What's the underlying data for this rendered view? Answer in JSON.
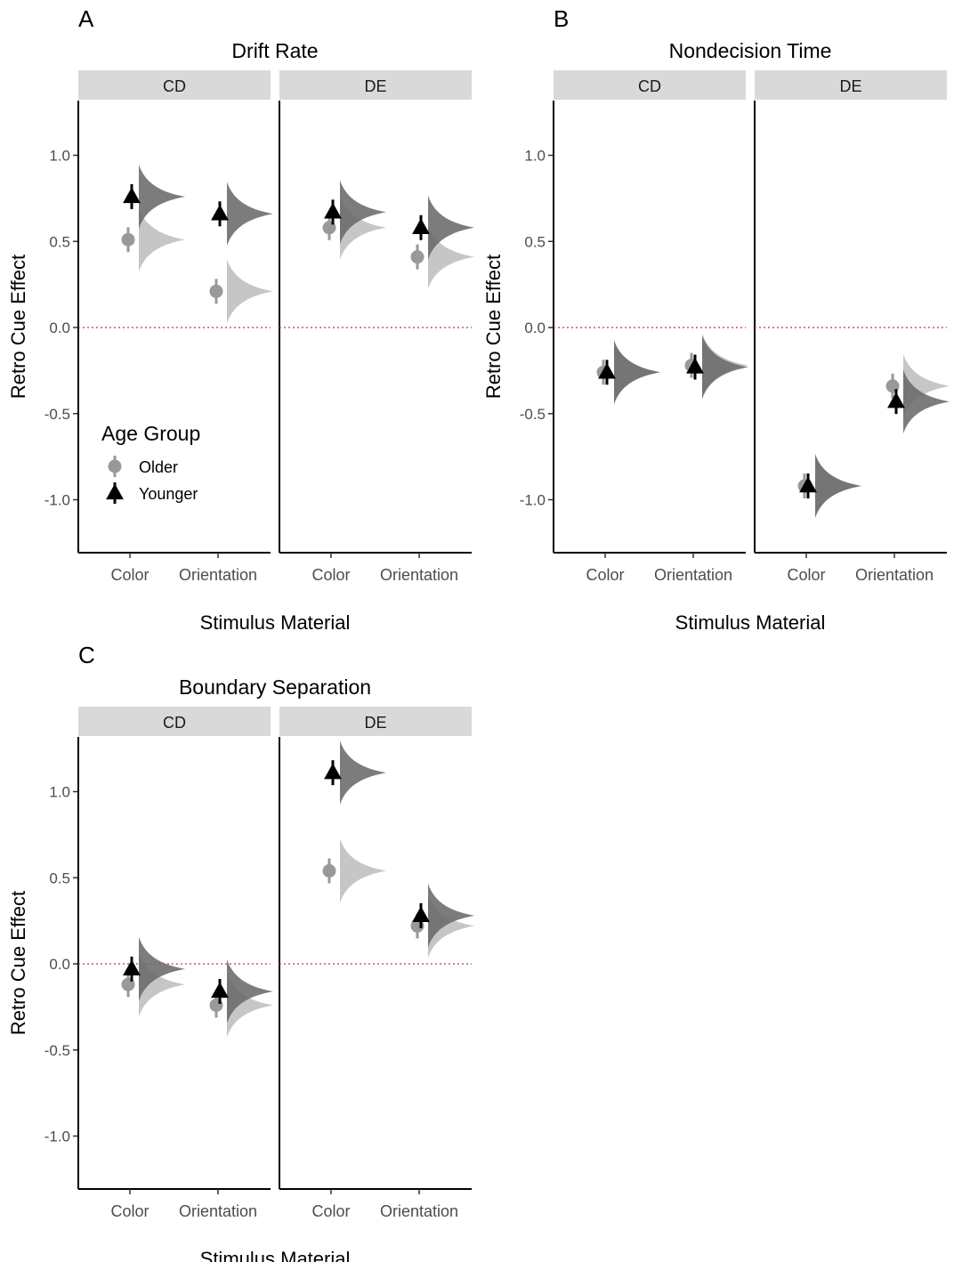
{
  "figure": {
    "axis_labels": {
      "y": "Retro Cue Effect",
      "x": "Stimulus Material"
    },
    "legend": {
      "title": "Age Group",
      "placement": "inside bottom-left of panel A",
      "items": [
        {
          "label": "Older",
          "shape": "circle",
          "color": "#999999"
        },
        {
          "label": "Younger",
          "shape": "triangle",
          "color": "#000000"
        }
      ]
    },
    "colors": {
      "older_point": "#999999",
      "younger_point": "#000000",
      "older_density": "#c0c0c0",
      "younger_density": "#6a6a6a",
      "reference_line": "#c8566e",
      "strip": "#d9d9d9"
    }
  },
  "chart_data": [
    {
      "type": "scatter",
      "tag": "A",
      "title": "Drift Rate",
      "ylabel": "Retro Cue Effect",
      "xlabel": "Stimulus Material",
      "facets": [
        "CD",
        "DE"
      ],
      "categories": [
        "Color",
        "Orientation"
      ],
      "yticks": [
        "1.0",
        "0.5",
        "0.0",
        "-0.5",
        "-1.0"
      ],
      "ylim": [
        -1.3,
        1.3
      ],
      "reference_line": 0,
      "grid": false,
      "series": [
        {
          "name": "Older",
          "values": [
            [
              0.51,
              0.21
            ],
            [
              0.58,
              0.41
            ]
          ]
        },
        {
          "name": "Younger",
          "values": [
            [
              0.76,
              0.66
            ],
            [
              0.67,
              0.58
            ]
          ]
        }
      ]
    },
    {
      "type": "scatter",
      "tag": "B",
      "title": "Nondecision Time",
      "ylabel": "Retro Cue Effect",
      "xlabel": "Stimulus Material",
      "facets": [
        "CD",
        "DE"
      ],
      "categories": [
        "Color",
        "Orientation"
      ],
      "yticks": [
        "1.0",
        "0.5",
        "0.0",
        "-0.5",
        "-1.0"
      ],
      "ylim": [
        -1.3,
        1.3
      ],
      "reference_line": 0,
      "grid": false,
      "series": [
        {
          "name": "Older",
          "values": [
            [
              -0.26,
              -0.22
            ],
            [
              -0.92,
              -0.34
            ]
          ]
        },
        {
          "name": "Younger",
          "values": [
            [
              -0.26,
              -0.23
            ],
            [
              -0.92,
              -0.43
            ]
          ]
        }
      ]
    },
    {
      "type": "scatter",
      "tag": "C",
      "title": "Boundary Separation",
      "ylabel": "Retro Cue Effect",
      "xlabel": "Stimulus Material",
      "facets": [
        "CD",
        "DE"
      ],
      "categories": [
        "Color",
        "Orientation"
      ],
      "yticks": [
        "1.0",
        "0.5",
        "0.0",
        "-0.5",
        "-1.0"
      ],
      "ylim": [
        -1.3,
        1.3
      ],
      "reference_line": 0,
      "grid": false,
      "series": [
        {
          "name": "Older",
          "values": [
            [
              -0.12,
              -0.24
            ],
            [
              0.54,
              0.22
            ]
          ]
        },
        {
          "name": "Younger",
          "values": [
            [
              -0.03,
              -0.16
            ],
            [
              1.11,
              0.28
            ]
          ]
        }
      ]
    }
  ]
}
